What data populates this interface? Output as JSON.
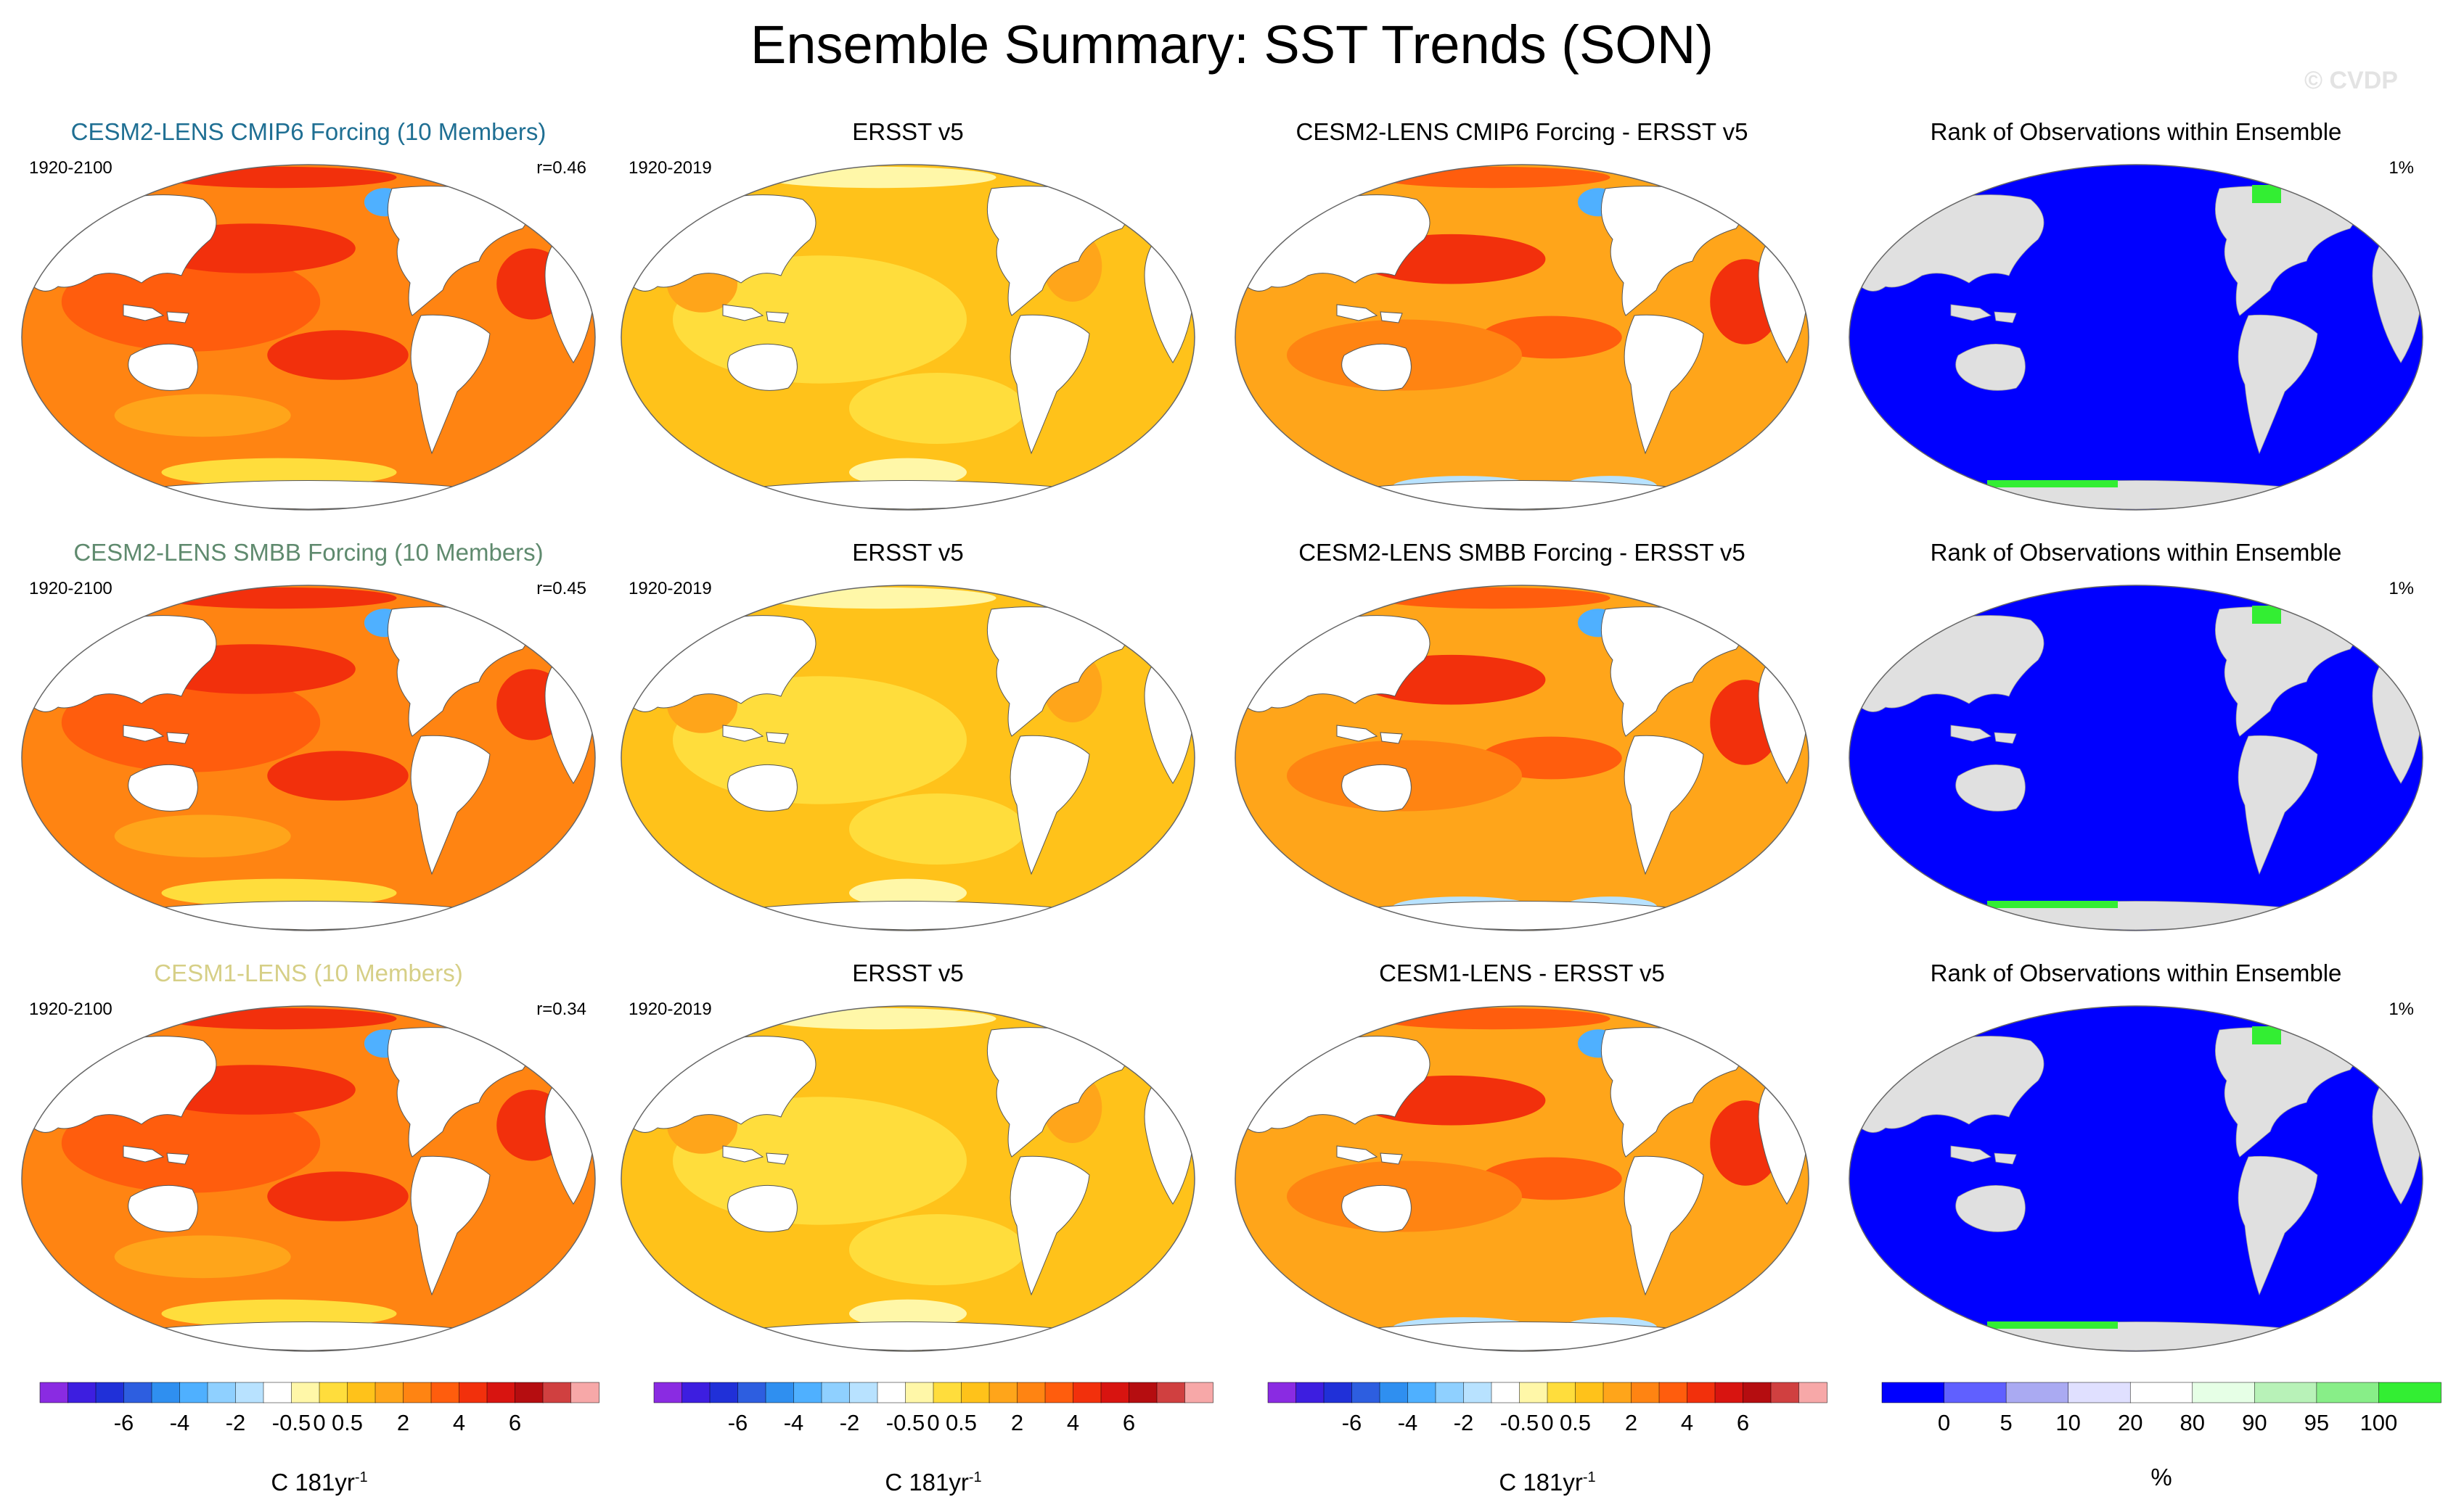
{
  "title": "Ensemble Summary: SST Trends (SON)",
  "watermark": "© CVDP",
  "colors": {
    "cesm2_cmip6_title": "#1f6f93",
    "cesm2_smbb_title": "#5f8a6e",
    "cesm1_title": "#d6cf86",
    "land_white": "#ffffff",
    "land_gray": "#e0e0e0",
    "rank_blue": "#0000ff",
    "rank_green": "#33ee33"
  },
  "rows": [
    {
      "panels": [
        {
          "kind": "model",
          "title": "CESM2-LENS CMIP6 Forcing (10 Members)",
          "left": "1920-2100",
          "right": "r=0.46"
        },
        {
          "kind": "obs",
          "title": "ERSST v5",
          "left": "1920-2019",
          "right": ""
        },
        {
          "kind": "diff",
          "title": "CESM2-LENS CMIP6 Forcing - ERSST v5",
          "left": "",
          "right": ""
        },
        {
          "kind": "rank",
          "title": "Rank of Observations within Ensemble",
          "left": "",
          "right": "1%"
        }
      ]
    },
    {
      "panels": [
        {
          "kind": "model",
          "title": "CESM2-LENS SMBB Forcing (10 Members)",
          "left": "1920-2100",
          "right": "r=0.45"
        },
        {
          "kind": "obs",
          "title": "ERSST v5",
          "left": "1920-2019",
          "right": ""
        },
        {
          "kind": "diff",
          "title": "CESM2-LENS SMBB Forcing - ERSST v5",
          "left": "",
          "right": ""
        },
        {
          "kind": "rank",
          "title": "Rank of Observations within Ensemble",
          "left": "",
          "right": "1%"
        }
      ]
    },
    {
      "panels": [
        {
          "kind": "model",
          "title": "CESM1-LENS (10 Members)",
          "left": "1920-2100",
          "right": "r=0.34"
        },
        {
          "kind": "obs",
          "title": "ERSST v5",
          "left": "1920-2019",
          "right": ""
        },
        {
          "kind": "diff",
          "title": "CESM1-LENS - ERSST v5",
          "left": "",
          "right": ""
        },
        {
          "kind": "rank",
          "title": "Rank of Observations within Ensemble",
          "left": "",
          "right": "1%"
        }
      ]
    }
  ],
  "chart_data": {
    "type": "heatmap",
    "title": "Ensemble Summary: SST Trends (SON)",
    "trend_colorbar": {
      "tick_labels": [
        "-6",
        "-4",
        "-2",
        "-0.5",
        "0",
        "0.5",
        "2",
        "4",
        "6"
      ],
      "levels": [
        -8,
        -7,
        -6,
        -5,
        -4,
        -3,
        -2,
        -1,
        -0.5,
        0,
        0.5,
        1,
        2,
        3,
        4,
        5,
        6,
        7,
        8
      ],
      "colors": [
        "#8a2be2",
        "#3d1ee0",
        "#2030d8",
        "#2d5ee0",
        "#2f8ff0",
        "#4fb0ff",
        "#8fd0ff",
        "#b8e2ff",
        "#ffffff",
        "#fff7a8",
        "#ffdd3c",
        "#ffc21a",
        "#ffa51a",
        "#ff8412",
        "#ff5d0d",
        "#f2300c",
        "#d81410",
        "#b50d10",
        "#d04040",
        "#f7a8a8"
      ],
      "unit": "C 181yr",
      "unit_exponent": "-1"
    },
    "rank_colorbar": {
      "tick_labels": [
        "0",
        "5",
        "10",
        "20",
        "80",
        "90",
        "95",
        "100"
      ],
      "levels": [
        0,
        5,
        10,
        20,
        80,
        90,
        95,
        100
      ],
      "colors": [
        "#0000ff",
        "#6060ff",
        "#aaaaf2",
        "#e0e0ff",
        "#ffffff",
        "#e6ffe6",
        "#b8f2b8",
        "#88ee88",
        "#33ee33"
      ],
      "unit": "%"
    },
    "row_periods": {
      "model": "1920-2100",
      "obs": "1920-2019"
    },
    "pattern_correlations": [
      0.46,
      0.45,
      0.34
    ],
    "rank_fraction_label": "1%"
  }
}
